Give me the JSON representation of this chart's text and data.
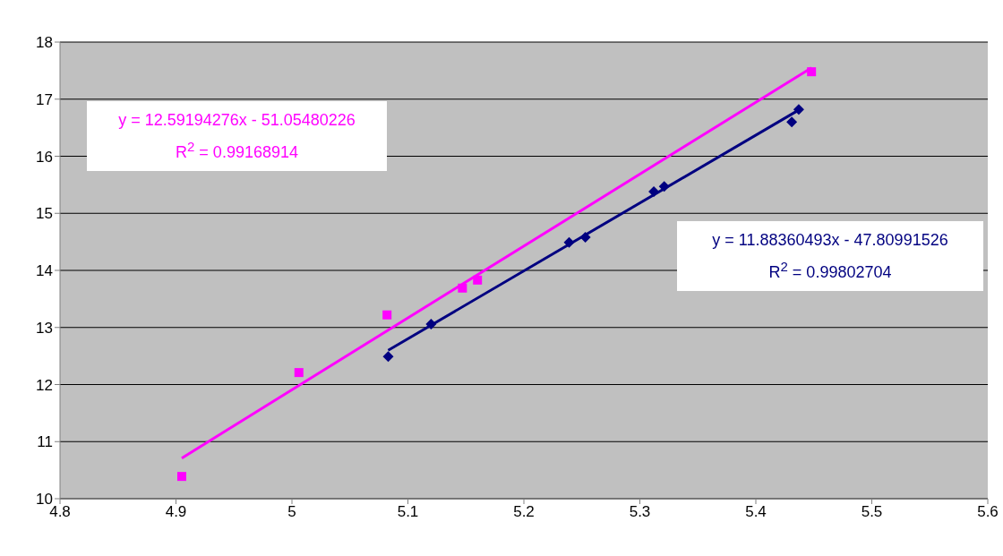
{
  "chart_data": {
    "type": "scatter",
    "xlim": [
      4.8,
      5.6
    ],
    "xticks": [
      4.8,
      4.9,
      5,
      5.1,
      5.2,
      5.3,
      5.4,
      5.5,
      5.6
    ],
    "ylim": [
      10,
      18
    ],
    "yticks": [
      10,
      11,
      12,
      13,
      14,
      15,
      16,
      17,
      18
    ],
    "grid": "y",
    "legend": false,
    "series": [
      {
        "type": "scatter",
        "marker": "square",
        "color": "#ff00ff",
        "x": [
          4.905,
          5.006,
          5.082,
          5.147,
          5.16,
          5.448
        ],
        "values": [
          10.39,
          12.21,
          13.22,
          13.69,
          13.83,
          17.48
        ]
      },
      {
        "type": "scatter",
        "marker": "diamond",
        "color": "#000080",
        "x": [
          5.083,
          5.12,
          5.239,
          5.253,
          5.312,
          5.321,
          5.431,
          5.437
        ],
        "values": [
          12.49,
          13.06,
          14.49,
          14.58,
          15.38,
          15.47,
          16.6,
          16.82
        ]
      },
      {
        "type": "line",
        "marker": "none",
        "color": "#ff00ff",
        "x": [
          4.905,
          5.448
        ],
        "values": [
          10.71,
          17.55
        ]
      },
      {
        "type": "line",
        "marker": "none",
        "color": "#000080",
        "x": [
          5.083,
          5.437
        ],
        "values": [
          12.6,
          16.81
        ]
      }
    ],
    "annotations": [
      "y = 12.59194276x - 51.05480226\nR$^{2}$ = 0.99168914",
      "y = 11.88360493x - 47.80991526\nR$^{2}$ = 0.99802704"
    ]
  }
}
